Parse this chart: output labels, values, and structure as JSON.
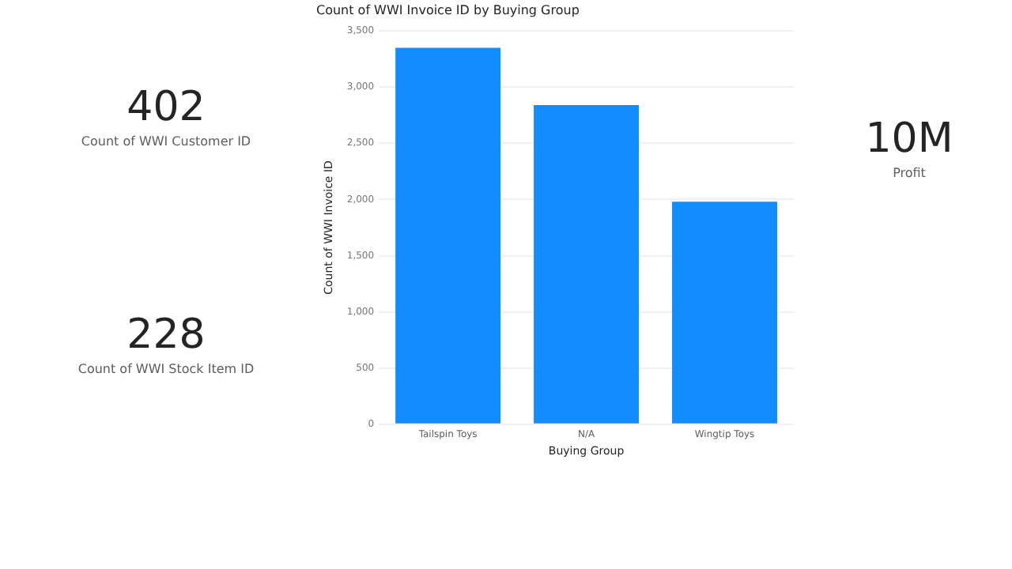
{
  "chart_data": [
    {
      "type": "other",
      "title": "402",
      "subtitle": "Count of WWI Customer ID"
    },
    {
      "type": "other",
      "title": "228",
      "subtitle": "Count of WWI Stock Item ID"
    },
    {
      "type": "bar",
      "title": "Count of WWI Invoice ID by Buying Group",
      "xlabel": "Buying Group",
      "ylabel": "Count of WWI Invoice ID",
      "categories": [
        "Tailspin Toys",
        "N/A",
        "Wingtip Toys"
      ],
      "values": [
        3350,
        2840,
        1980
      ],
      "color": "#118dff",
      "ylim": [
        0,
        3500
      ],
      "yticks": [
        {
          "value": 0,
          "label": "0"
        },
        {
          "value": 500,
          "label": "500"
        },
        {
          "value": 1000,
          "label": "1,000"
        },
        {
          "value": 1500,
          "label": "1,500"
        },
        {
          "value": 2000,
          "label": "2,000"
        },
        {
          "value": 2500,
          "label": "2,500"
        },
        {
          "value": 3000,
          "label": "3,000"
        },
        {
          "value": 3500,
          "label": "3,500"
        }
      ],
      "grid": "y",
      "legend": false
    },
    {
      "type": "other",
      "title": "10M",
      "subtitle": "Profit"
    }
  ]
}
